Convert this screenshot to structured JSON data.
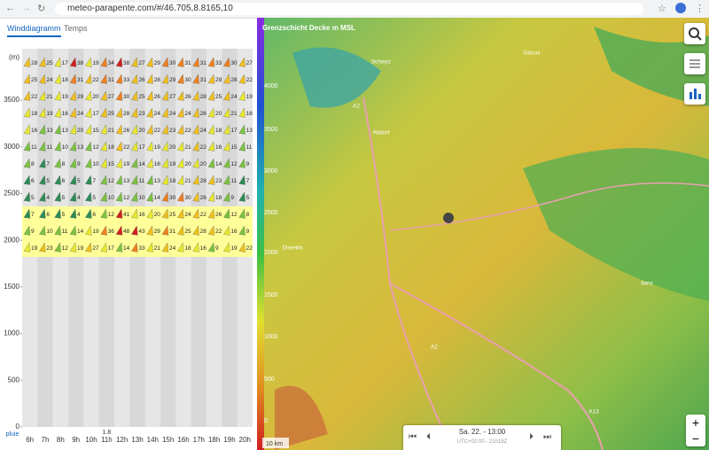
{
  "browser": {
    "url": "meteo-parapente.com/#/46.705,8.8165,10"
  },
  "tabs": [
    "Winddiagramm",
    "Temps"
  ],
  "wind_diagram": {
    "unit_label": "(m)",
    "yticks": [
      0,
      500,
      1000,
      1500,
      2000,
      2500,
      3000,
      3500
    ],
    "hours": [
      "6h",
      "7h",
      "8h",
      "9h",
      "10h",
      "11h",
      "12h",
      "13h",
      "14h",
      "15h",
      "16h",
      "17h",
      "18h",
      "19h",
      "20h"
    ],
    "rain_label": "pluie",
    "rain_value": "1.8",
    "speeds": [
      [
        28,
        25,
        17,
        38,
        19,
        34,
        38,
        27,
        29,
        30,
        31,
        31,
        33,
        30,
        27
      ],
      [
        25,
        24,
        18,
        31,
        22,
        31,
        33,
        26,
        28,
        29,
        30,
        31,
        29,
        28,
        22
      ],
      [
        22,
        21,
        19,
        29,
        20,
        27,
        30,
        25,
        26,
        27,
        26,
        28,
        25,
        24,
        19
      ],
      [
        18,
        19,
        16,
        24,
        17,
        25,
        28,
        23,
        24,
        24,
        24,
        26,
        20,
        21,
        16
      ],
      [
        16,
        13,
        13,
        20,
        15,
        21,
        26,
        20,
        22,
        23,
        22,
        24,
        18,
        17,
        13
      ],
      [
        11,
        11,
        10,
        13,
        12,
        18,
        22,
        17,
        19,
        20,
        21,
        22,
        16,
        15,
        11
      ],
      [
        8,
        7,
        8,
        9,
        10,
        15,
        19,
        14,
        16,
        19,
        20,
        20,
        14,
        12,
        9
      ],
      [
        6,
        5,
        6,
        5,
        7,
        12,
        13,
        11,
        13,
        18,
        21,
        28,
        23,
        11,
        7
      ],
      [
        5,
        4,
        5,
        4,
        5,
        10,
        12,
        10,
        14,
        30,
        30,
        26,
        18,
        9,
        5
      ],
      [
        7,
        6,
        5,
        4,
        6,
        12,
        41,
        16,
        20,
        25,
        24,
        22,
        26,
        12,
        8
      ],
      [
        9,
        10,
        11,
        14,
        19,
        36,
        48,
        43,
        29,
        31,
        25,
        28,
        22,
        16,
        9
      ],
      [
        19,
        23,
        12,
        19,
        27,
        17,
        14,
        33,
        21,
        24,
        18,
        16,
        9,
        19,
        22
      ]
    ]
  },
  "map": {
    "legend_title": "Grenzschicht Decke m MSL",
    "legend_ticks": [
      4000,
      3500,
      3000,
      2500,
      2000,
      1500,
      1000,
      500,
      0
    ],
    "places": [
      "Schwyz",
      "Glarus",
      "Altdorf",
      "A2",
      "A2",
      "A13",
      "Disentis",
      "Ilanz"
    ],
    "scale": "10 km",
    "time": "Sa. 22. - 13:00",
    "time_sub": "UTC+02:00 - 21h18Z",
    "zoom_in": "+",
    "zoom_out": "−"
  }
}
